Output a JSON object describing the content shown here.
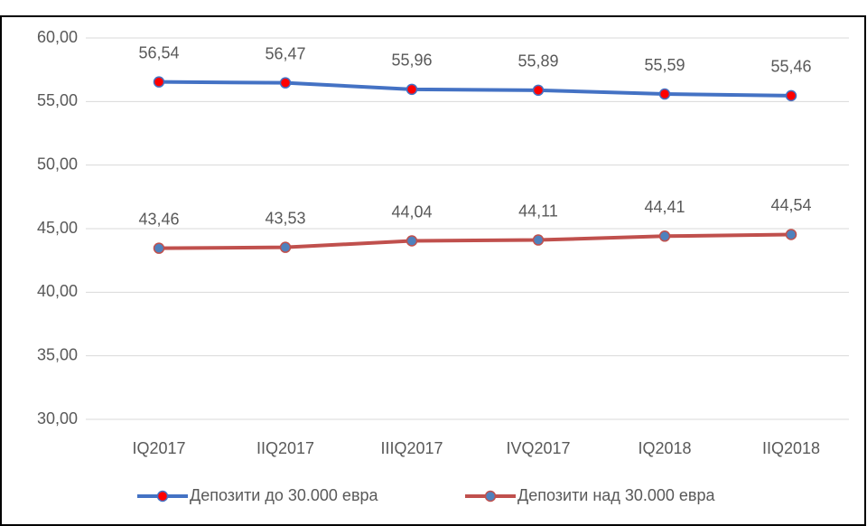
{
  "chart_data": {
    "type": "line",
    "categories": [
      "IQ2017",
      "IIQ2017",
      "IIIQ2017",
      "IVQ2017",
      "IQ2018",
      "IIQ2018"
    ],
    "series": [
      {
        "name": "Депозити до 30.000 евра",
        "color": "#4472c4",
        "marker_color": "#ff0000",
        "values": [
          56.54,
          56.47,
          55.96,
          55.89,
          55.59,
          55.46
        ],
        "value_labels": [
          "56,54",
          "56,47",
          "55,96",
          "55,89",
          "55,59",
          "55,46"
        ]
      },
      {
        "name": "Депозити над 30.000 евра",
        "color": "#c0504d",
        "marker_color": "#4f81bd",
        "values": [
          43.46,
          43.53,
          44.04,
          44.11,
          44.41,
          44.54
        ],
        "value_labels": [
          "43,46",
          "43,53",
          "44,04",
          "44,11",
          "44,41",
          "44,54"
        ]
      }
    ],
    "ylim": [
      30,
      60
    ],
    "yticks": [
      {
        "value": 30,
        "label": "30,00"
      },
      {
        "value": 35,
        "label": "35,00"
      },
      {
        "value": 40,
        "label": "40,00"
      },
      {
        "value": 45,
        "label": "45,00"
      },
      {
        "value": 50,
        "label": "50,00"
      },
      {
        "value": 55,
        "label": "55,00"
      },
      {
        "value": 60,
        "label": "60,00"
      }
    ],
    "grid": true,
    "legend": "bottom"
  }
}
